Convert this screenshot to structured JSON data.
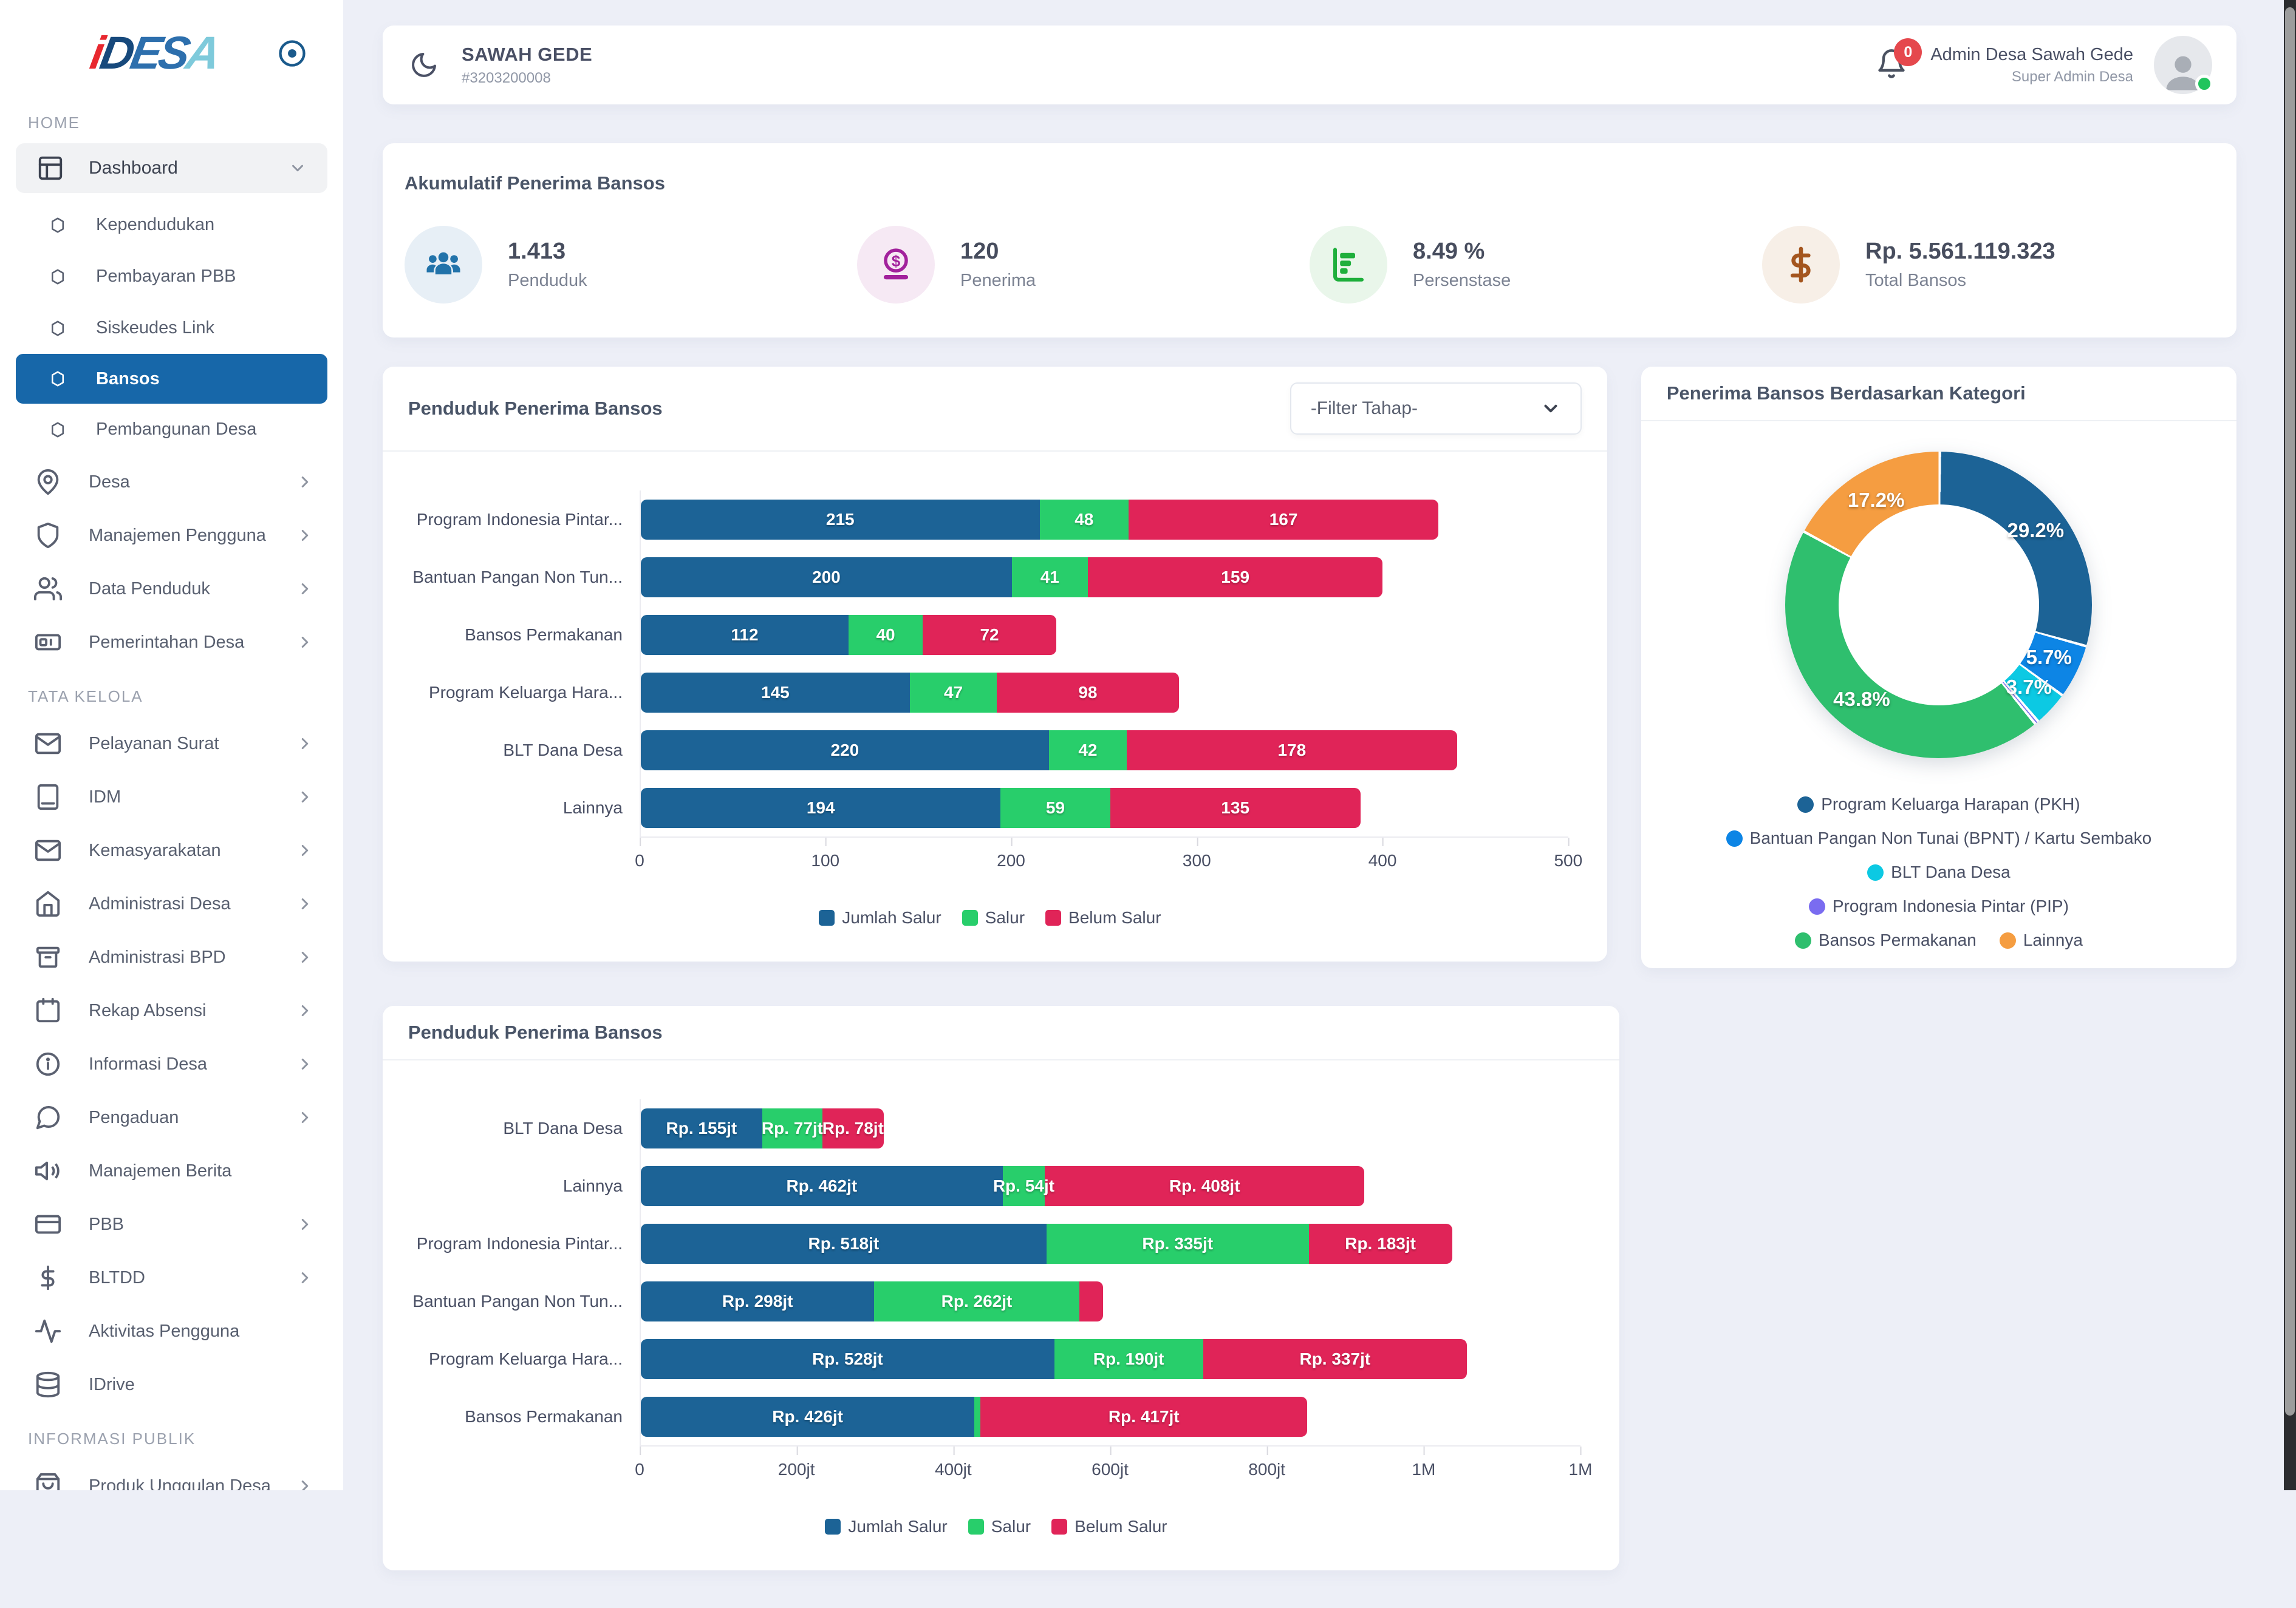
{
  "sidebar": {
    "logo_parts": [
      "i",
      "D",
      "ES",
      "A"
    ],
    "home_label": "HOME",
    "dashboard_label": "Dashboard",
    "dashboard_sub": [
      {
        "label": "Kependudukan",
        "active": false
      },
      {
        "label": "Pembayaran PBB",
        "active": false
      },
      {
        "label": "Siskeudes Link",
        "active": false
      },
      {
        "label": "Bansos",
        "active": true
      },
      {
        "label": "Pembangunan Desa",
        "active": false
      }
    ],
    "home_items": [
      {
        "label": "Desa"
      },
      {
        "label": "Manajemen Pengguna"
      },
      {
        "label": "Data Penduduk"
      },
      {
        "label": "Pemerintahan Desa"
      }
    ],
    "tata_label": "TATA KELOLA",
    "tata_items": [
      {
        "label": "Pelayanan Surat"
      },
      {
        "label": "IDM"
      },
      {
        "label": "Kemasyarakatan"
      },
      {
        "label": "Administrasi Desa"
      },
      {
        "label": "Administrasi BPD"
      },
      {
        "label": "Rekap Absensi"
      },
      {
        "label": "Informasi Desa"
      },
      {
        "label": "Pengaduan"
      },
      {
        "label": "Manajemen Berita"
      },
      {
        "label": "PBB"
      },
      {
        "label": "BLTDD"
      },
      {
        "label": "Aktivitas Pengguna"
      },
      {
        "label": "IDrive"
      }
    ],
    "publik_label": "INFORMASI PUBLIK",
    "publik_items": [
      {
        "label": "Produk Unggulan Desa"
      }
    ]
  },
  "header": {
    "village_name": "SAWAH GEDE",
    "village_code": "#3203200008",
    "notif_count": "0",
    "admin_name": "Admin Desa Sawah Gede",
    "admin_role": "Super Admin Desa"
  },
  "stats": {
    "title": "Akumulatif Penerima Bansos",
    "items": [
      {
        "value": "1.413",
        "label": "Penduduk",
        "icon": "people-icon"
      },
      {
        "value": "120",
        "label": "Penerima",
        "icon": "money-receive-icon"
      },
      {
        "value": "8.49 %",
        "label": "Persenstase",
        "icon": "chart-bar-icon"
      },
      {
        "value": "Rp. 5.561.119.323",
        "label": "Total Bansos",
        "icon": "dollar-icon"
      }
    ]
  },
  "filters": {
    "tahap": "-Filter Tahap-"
  },
  "chart_data": [
    {
      "id": "penduduk-penerima-bansos-jumlah",
      "type": "bar",
      "title": "Penduduk Penerima Bansos",
      "categories": [
        "Program Indonesia Pintar...",
        "Bantuan Pangan Non Tun...",
        "Bansos Permakanan",
        "Program Keluarga Hara...",
        "BLT Dana Desa",
        "Lainnya"
      ],
      "series": [
        {
          "name": "Jumlah Salur",
          "color": "#1c6396",
          "values": [
            215,
            200,
            112,
            145,
            220,
            194
          ],
          "labels": [
            "215",
            "200",
            "112",
            "145",
            "220",
            "194"
          ]
        },
        {
          "name": "Salur",
          "color": "#28ce6b",
          "values": [
            48,
            41,
            40,
            47,
            42,
            59
          ],
          "labels": [
            "48",
            "41",
            "40",
            "47",
            "42",
            "59"
          ]
        },
        {
          "name": "Belum Salur",
          "color": "#e02458",
          "values": [
            167,
            159,
            72,
            98,
            178,
            135
          ],
          "labels": [
            "167",
            "159",
            "72",
            "98",
            "178",
            "135"
          ]
        }
      ],
      "xticks": [
        "0",
        "100",
        "200",
        "300",
        "400",
        "500"
      ],
      "xmax": 500,
      "legend_position": "bottom",
      "grid": false
    },
    {
      "id": "penerima-bansos-berdasarkan-kategori",
      "type": "pie",
      "title": "Penerima Bansos Berdasarkan Kategori",
      "slices": [
        {
          "label": "Program Keluarga Harapan (PKH)",
          "pct": 29.2,
          "color": "#1c6396",
          "show_label": true
        },
        {
          "label": "Bantuan Pangan Non Tunai (BPNT) / Kartu Sembako",
          "pct": 5.7,
          "color": "#0d85e5",
          "show_label": true
        },
        {
          "label": "BLT Dana Desa",
          "pct": 3.7,
          "color": "#0cc9e3",
          "show_label": true
        },
        {
          "label": "Program Indonesia Pintar (PIP)",
          "pct": 0.4,
          "color": "#7a6cf0",
          "show_label": false
        },
        {
          "label": "Bansos Permakanan",
          "pct": 43.8,
          "color": "#2fbf6e",
          "show_label": true
        },
        {
          "label": "Lainnya",
          "pct": 17.2,
          "color": "#f59d41",
          "show_label": true
        }
      ]
    },
    {
      "id": "penduduk-penerima-bansos-rupiah",
      "type": "bar",
      "title": "Penduduk Penerima Bansos",
      "categories": [
        "BLT Dana Desa",
        "Lainnya",
        "Program Indonesia Pintar...",
        "Bantuan Pangan Non Tun...",
        "Program Keluarga Hara...",
        "Bansos Permakanan"
      ],
      "series": [
        {
          "name": "Jumlah Salur",
          "color": "#1c6396",
          "values": [
            155,
            462,
            518,
            298,
            528,
            426
          ],
          "labels": [
            "Rp. 155jt",
            "Rp. 462jt",
            "Rp. 518jt",
            "Rp. 298jt",
            "Rp. 528jt",
            "Rp. 426jt"
          ]
        },
        {
          "name": "Salur",
          "color": "#28ce6b",
          "values": [
            77,
            54,
            335,
            262,
            190,
            8
          ],
          "labels": [
            "Rp. 77jt",
            "Rp. 54jt",
            "Rp. 335jt",
            "Rp. 262jt",
            "Rp. 190jt",
            ""
          ]
        },
        {
          "name": "Belum Salur",
          "color": "#e02458",
          "values": [
            78,
            408,
            183,
            30,
            337,
            417
          ],
          "labels": [
            "Rp. 78jt",
            "Rp. 408jt",
            "Rp. 183jt",
            "",
            "Rp. 337jt",
            "Rp. 417jt"
          ]
        }
      ],
      "xticks": [
        "0",
        "200jt",
        "400jt",
        "600jt",
        "800jt",
        "1M",
        "1M"
      ],
      "xmax": 1200,
      "legend_position": "bottom",
      "grid": false
    }
  ]
}
